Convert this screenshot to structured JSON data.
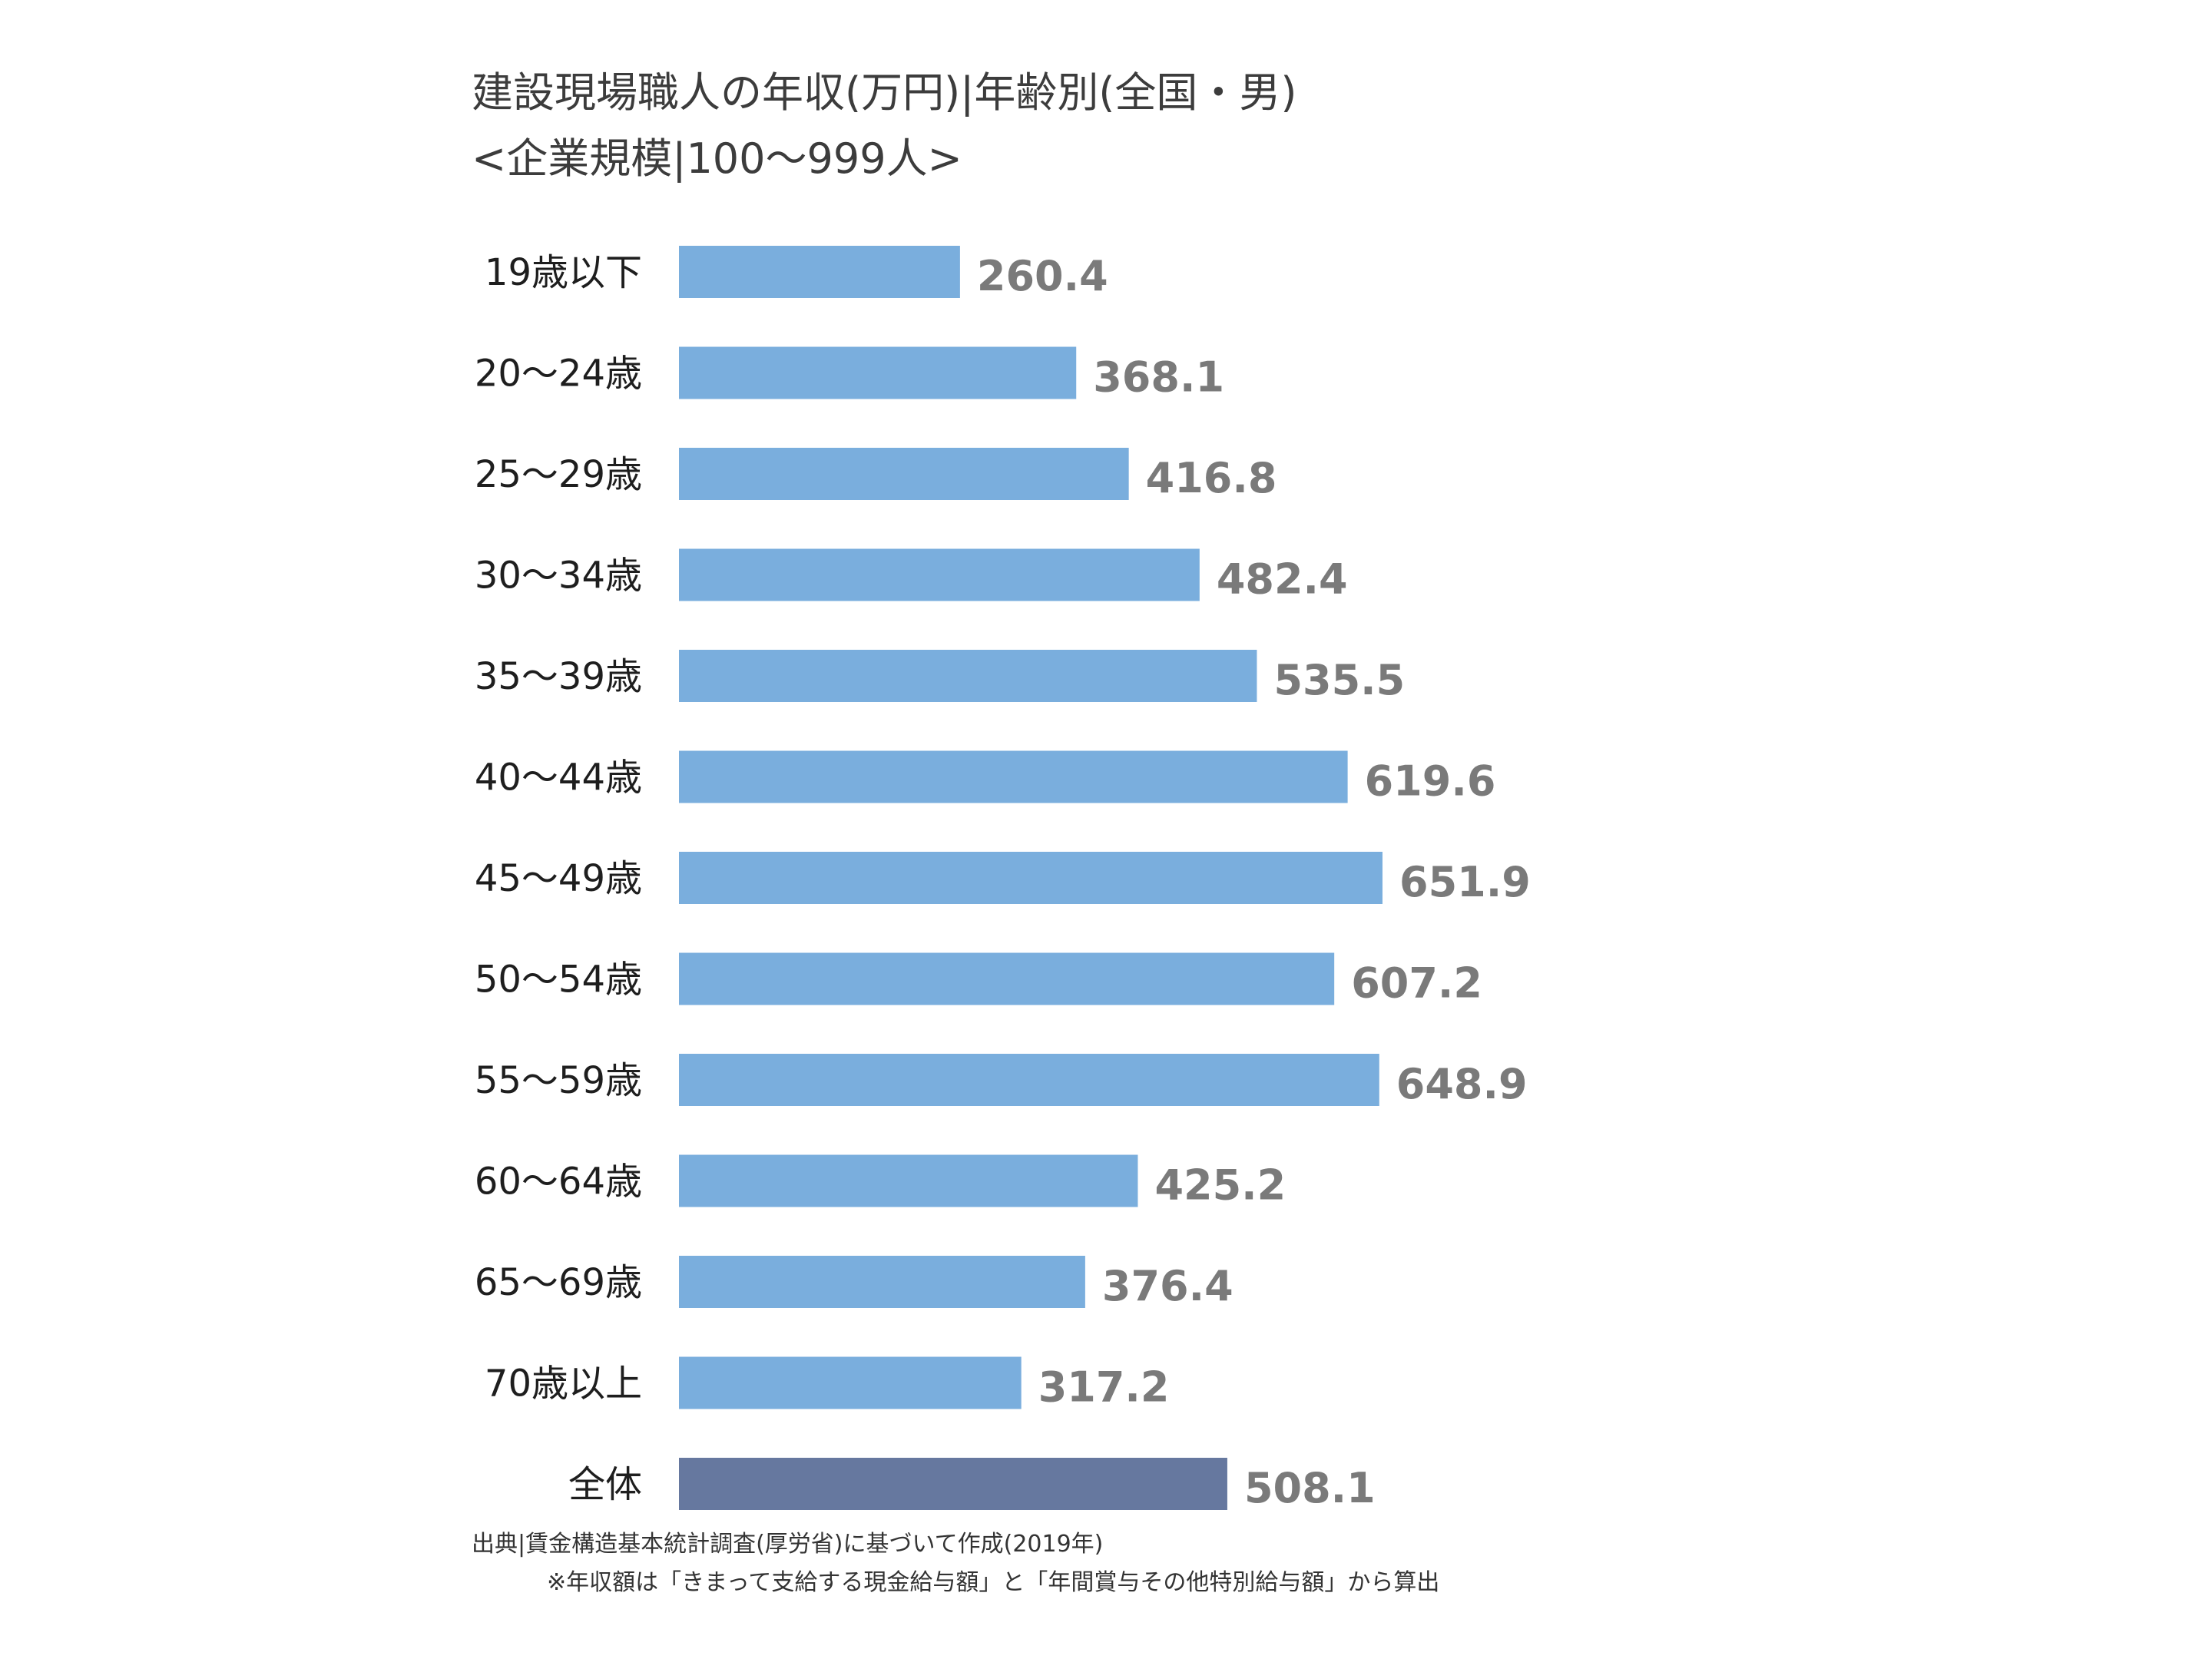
{
  "chart_data": {
    "type": "bar",
    "orientation": "horizontal",
    "title": "建設現場職人の年収(万円)|年齢別(全国・男)",
    "subtitle": "<企業規模|100〜999人>",
    "categories": [
      "19歳以下",
      "20〜24歳",
      "25〜29歳",
      "30〜34歳",
      "35〜39歳",
      "40〜44歳",
      "45〜49歳",
      "50〜54歳",
      "55〜59歳",
      "60〜64歳",
      "65〜69歳",
      "70歳以上",
      "全体"
    ],
    "values": [
      260.4,
      368.1,
      416.8,
      482.4,
      535.5,
      619.6,
      651.9,
      607.2,
      648.9,
      425.2,
      376.4,
      317.2,
      508.1
    ],
    "value_labels": [
      "260.4",
      "368.1",
      "416.8",
      "482.4",
      "535.5",
      "619.6",
      "651.9",
      "607.2",
      "648.9",
      "425.2",
      "376.4",
      "317.2",
      "508.1"
    ],
    "xlim": [
      0,
      651.9
    ],
    "grid": false,
    "legend": "none",
    "colors": {
      "bar": "#7aaedd",
      "bar_highlight": "#66789f",
      "value_text": "#7a7a7a",
      "category_text": "#1e1e1e"
    },
    "highlight_index": 12
  },
  "notes": {
    "source": "出典|賃金構造基本統計調査(厚労省)に基づいて作成(2019年)",
    "footnote": "※年収額は「きまって支給する現金給与額」と「年間賞与その他特別給与額」から算出"
  }
}
